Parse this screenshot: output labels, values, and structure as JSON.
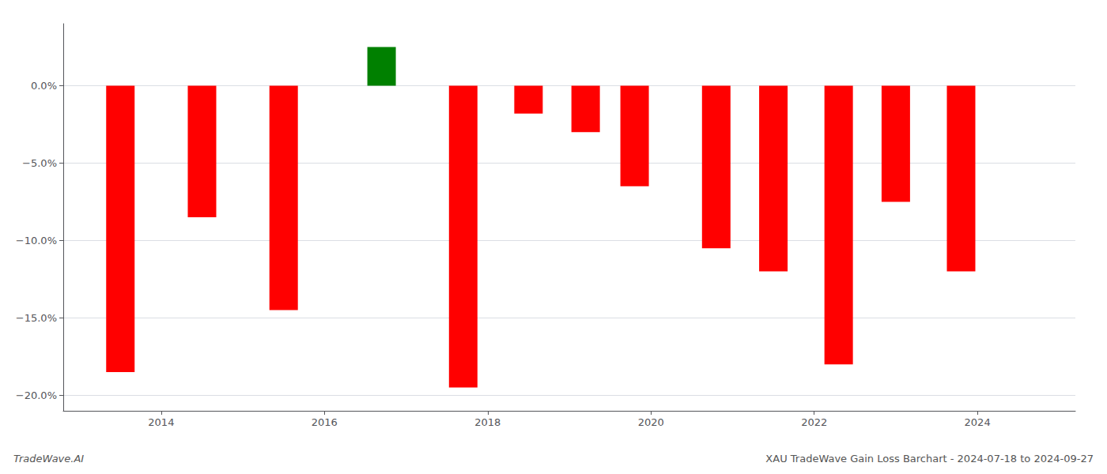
{
  "chart_data": {
    "type": "bar",
    "title": "XAU TradeWave Gain Loss Barchart - 2024-07-18 to 2024-09-27",
    "annotations": [
      "TradeWave.AI"
    ],
    "x": [
      2013.5,
      2014.5,
      2015.5,
      2016.7,
      2017.7,
      2018.5,
      2019.2,
      2019.8,
      2020.8,
      2021.5,
      2022.3,
      2023.0,
      2023.8
    ],
    "values": [
      -18.5,
      -8.5,
      -14.5,
      2.5,
      -19.5,
      -1.8,
      -3.0,
      -6.5,
      -10.5,
      -12.0,
      -18.0,
      -7.5,
      -12.0
    ],
    "colors": [
      "#ff0000",
      "#ff0000",
      "#ff0000",
      "#008000",
      "#ff0000",
      "#ff0000",
      "#ff0000",
      "#ff0000",
      "#ff0000",
      "#ff0000",
      "#ff0000",
      "#ff0000",
      "#ff0000"
    ],
    "xlim": [
      2012.8,
      2025.2
    ],
    "xticks": [
      2014,
      2016,
      2018,
      2020,
      2022,
      2024
    ],
    "ylim": [
      -21,
      4
    ],
    "yticks": [
      {
        "value": 0,
        "label": "0.0%"
      },
      {
        "value": -5,
        "label": "−5.0%"
      },
      {
        "value": -10,
        "label": "−10.0%"
      },
      {
        "value": -15,
        "label": "−15.0%"
      },
      {
        "value": -20,
        "label": "−20.0%"
      }
    ],
    "grid": true
  }
}
